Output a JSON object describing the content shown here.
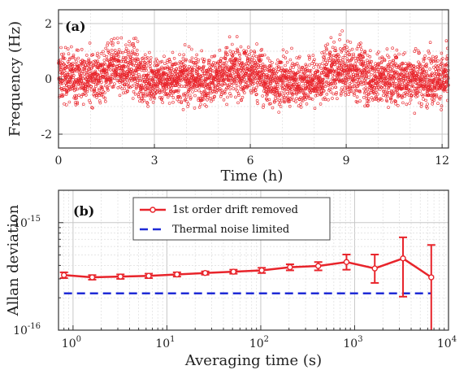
{
  "chart_data": [
    {
      "panel_label": "(a)",
      "type": "scatter",
      "xlabel": "Time (h)",
      "ylabel": "Frequency (Hz)",
      "xlim": [
        0,
        12.2
      ],
      "ylim": [
        -2.5,
        2.5
      ],
      "xticks": [
        0,
        3,
        6,
        9,
        12
      ],
      "yticks": [
        -2,
        0,
        2
      ],
      "grid": true,
      "marker_color": "#e8242b",
      "trend_segments": [
        {
          "t": [
            0,
            1.5
          ],
          "mean": 0.1,
          "sd": 0.45
        },
        {
          "t": [
            1.5,
            2.5
          ],
          "mean": 0.35,
          "sd": 0.45
        },
        {
          "t": [
            2.5,
            5.2
          ],
          "mean": 0.0,
          "sd": 0.42
        },
        {
          "t": [
            5.2,
            6.4
          ],
          "mean": 0.25,
          "sd": 0.45
        },
        {
          "t": [
            6.4,
            8.3
          ],
          "mean": -0.1,
          "sd": 0.42
        },
        {
          "t": [
            8.3,
            9.6
          ],
          "mean": 0.3,
          "sd": 0.48
        },
        {
          "t": [
            9.6,
            12.2
          ],
          "mean": 0.0,
          "sd": 0.45
        }
      ],
      "n_points": 3600
    },
    {
      "panel_label": "(b)",
      "type": "line",
      "xlabel": "Averaging time (s)",
      "ylabel": "Allan deviation",
      "xscale": "log",
      "yscale": "log",
      "xlim": [
        0.7,
        10000
      ],
      "ylim": [
        1e-16,
        2e-15
      ],
      "xtick_labels": [
        {
          "v": 1,
          "b": "10",
          "e": "0"
        },
        {
          "v": 10,
          "b": "10",
          "e": "1"
        },
        {
          "v": 100,
          "b": "10",
          "e": "2"
        },
        {
          "v": 1000,
          "b": "10",
          "e": "3"
        },
        {
          "v": 10000,
          "b": "10",
          "e": "4"
        }
      ],
      "ytick_labels": [
        {
          "v": 1e-16,
          "b": "10",
          "e": "-16"
        },
        {
          "v": 1e-15,
          "b": "10",
          "e": "-15"
        }
      ],
      "grid": true,
      "legend_position": "top-center",
      "series": [
        {
          "name": "1st order drift removed",
          "color": "#e8242b",
          "style": "solid-with-open-circles",
          "x": [
            0.8,
            1.6,
            3.2,
            6.4,
            12.8,
            25.6,
            51.2,
            102.4,
            204.8,
            409.6,
            819.2,
            1638.4,
            3276.8,
            6553.6
          ],
          "y": [
            3.25e-16,
            3.1e-16,
            3.15e-16,
            3.2e-16,
            3.3e-16,
            3.4e-16,
            3.5e-16,
            3.6e-16,
            3.85e-16,
            3.95e-16,
            4.3e-16,
            3.75e-16,
            4.65e-16,
            3.1e-16
          ],
          "y_lower": [
            3.05e-16,
            2.95e-16,
            3e-16,
            3.05e-16,
            3.15e-16,
            3.28e-16,
            3.35e-16,
            3.4e-16,
            3.6e-16,
            3.6e-16,
            3.65e-16,
            2.75e-16,
            2.05e-16,
            1e-16
          ],
          "y_upper": [
            3.45e-16,
            3.25e-16,
            3.3e-16,
            3.35e-16,
            3.45e-16,
            3.52e-16,
            3.65e-16,
            3.8e-16,
            4.1e-16,
            4.3e-16,
            5.05e-16,
            5.05e-16,
            7.3e-16,
            6.2e-16
          ]
        },
        {
          "name": "Thermal noise limited",
          "color": "#1f2bd6",
          "style": "dashed",
          "x": [
            0.8,
            6553.6
          ],
          "y": [
            2.2e-16,
            2.2e-16
          ]
        }
      ]
    }
  ]
}
